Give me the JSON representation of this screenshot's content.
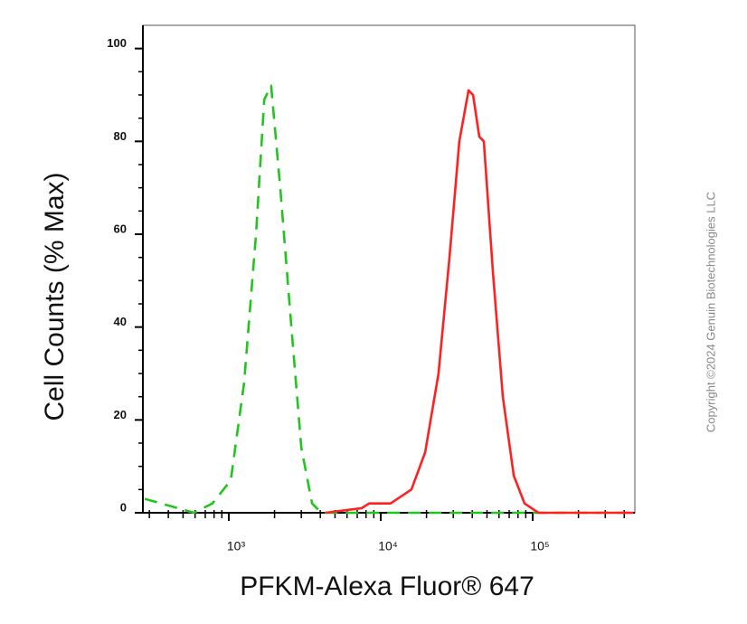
{
  "chart_data": {
    "type": "line",
    "log_x": true,
    "xlabel": "PFKM-Alexa Fluor® 647",
    "ylabel": "Cell Counts (% Max)",
    "watermark": "Copyright ©2024 Genuin Biotechnologies LLC",
    "xlim": [
      272,
      470000
    ],
    "ylim": [
      0,
      105
    ],
    "xticks": [
      {
        "value": 1000,
        "label": "10³"
      },
      {
        "value": 10000,
        "label": "10⁴"
      },
      {
        "value": 100000,
        "label": "10⁵"
      }
    ],
    "xminorticks": [
      300,
      400,
      500,
      600,
      700,
      800,
      900,
      2000,
      3000,
      4000,
      5000,
      6000,
      7000,
      8000,
      9000,
      20000,
      30000,
      40000,
      50000,
      60000,
      70000,
      80000,
      90000,
      200000,
      300000,
      400000
    ],
    "yticks": [
      0,
      20,
      40,
      60,
      80,
      100
    ],
    "yminorticks": [
      5,
      10,
      15,
      25,
      30,
      35,
      45,
      50,
      55,
      65,
      70,
      75,
      85,
      90,
      95
    ],
    "series": [
      {
        "color": "#22c41e",
        "dashed": true,
        "x": [
          280,
          590,
          780,
          1030,
          1260,
          1510,
          1710,
          1900,
          2180,
          2580,
          3000,
          3530,
          4050,
          460000
        ],
        "values": [
          3,
          0,
          2,
          7,
          28,
          60,
          89,
          92,
          70,
          40,
          14,
          2,
          0,
          0
        ]
      },
      {
        "color": "#ff2020",
        "dashed": false,
        "x": [
          4340,
          7500,
          8370,
          11600,
          15900,
          19600,
          24000,
          28300,
          32900,
          37800,
          40500,
          44500,
          47700,
          54700,
          63600,
          75000,
          88300,
          109000,
          460000
        ],
        "values": [
          0,
          1,
          2,
          2,
          5,
          13,
          30,
          55,
          80,
          91,
          90,
          81,
          80,
          52,
          25,
          8,
          2,
          0,
          0
        ]
      }
    ]
  }
}
